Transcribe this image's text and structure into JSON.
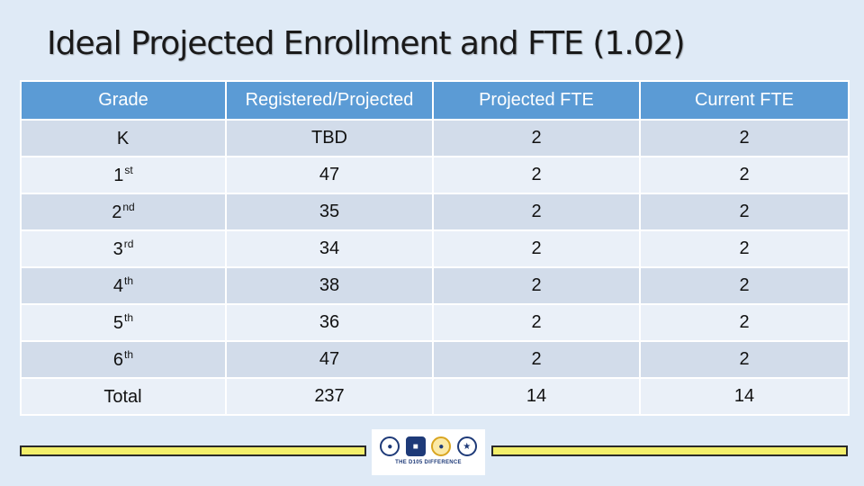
{
  "title": "Ideal Projected Enrollment and FTE (1.02)",
  "table": {
    "headers": [
      "Grade",
      "Registered/Projected",
      "Projected FTE",
      "Current FTE"
    ],
    "rows": [
      {
        "grade": "K",
        "sup": "",
        "registered": "TBD",
        "projected_fte": "2",
        "current_fte": "2"
      },
      {
        "grade": "1",
        "sup": "st",
        "registered": "47",
        "projected_fte": "2",
        "current_fte": "2"
      },
      {
        "grade": "2",
        "sup": "nd",
        "registered": "35",
        "projected_fte": "2",
        "current_fte": "2"
      },
      {
        "grade": "3",
        "sup": "rd",
        "registered": "34",
        "projected_fte": "2",
        "current_fte": "2"
      },
      {
        "grade": "4",
        "sup": "th",
        "registered": "38",
        "projected_fte": "2",
        "current_fte": "2"
      },
      {
        "grade": "5",
        "sup": "th",
        "registered": "36",
        "projected_fte": "2",
        "current_fte": "2"
      },
      {
        "grade": "6",
        "sup": "th",
        "registered": "47",
        "projected_fte": "2",
        "current_fte": "2"
      },
      {
        "grade": "Total",
        "sup": "",
        "registered": "237",
        "projected_fte": "14",
        "current_fte": "14"
      }
    ]
  },
  "footer": {
    "logo_caption": "THE D105 DIFFERENCE",
    "bar_color": "#f3ef6a"
  },
  "colors": {
    "header_bg": "#5b9bd5",
    "row_odd": "#d2dcea",
    "row_even": "#eaf0f8",
    "page_bg": "#dfeaf6"
  }
}
